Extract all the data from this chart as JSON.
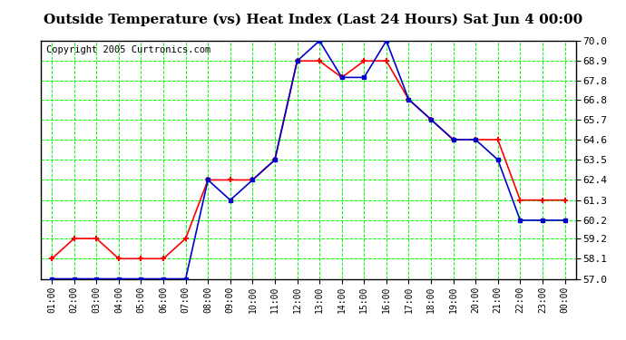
{
  "title": "Outside Temperature (vs) Heat Index (Last 24 Hours) Sat Jun 4 00:00",
  "copyright": "Copyright 2005 Curtronics.com",
  "x_labels": [
    "01:00",
    "02:00",
    "03:00",
    "04:00",
    "05:00",
    "06:00",
    "07:00",
    "08:00",
    "09:00",
    "10:00",
    "11:00",
    "12:00",
    "13:00",
    "14:00",
    "15:00",
    "16:00",
    "17:00",
    "18:00",
    "19:00",
    "20:00",
    "21:00",
    "22:00",
    "23:00",
    "00:00"
  ],
  "outside_temp": [
    58.1,
    59.2,
    59.2,
    58.1,
    58.1,
    58.1,
    59.2,
    62.4,
    62.4,
    62.4,
    63.5,
    68.9,
    68.9,
    68.0,
    68.9,
    68.9,
    66.8,
    65.7,
    64.6,
    64.6,
    64.6,
    61.3,
    61.3,
    61.3
  ],
  "heat_index": [
    57.0,
    57.0,
    57.0,
    57.0,
    57.0,
    57.0,
    57.0,
    62.4,
    61.3,
    62.4,
    63.5,
    68.9,
    70.0,
    68.0,
    68.0,
    70.0,
    66.8,
    65.7,
    64.6,
    64.6,
    63.5,
    60.2,
    60.2,
    60.2
  ],
  "temp_color": "#ff0000",
  "heat_color": "#0000cc",
  "bg_color": "#ffffff",
  "grid_color": "#00ff00",
  "ylim": [
    57.0,
    70.0
  ],
  "yticks": [
    57.0,
    58.1,
    59.2,
    60.2,
    61.3,
    62.4,
    63.5,
    64.6,
    65.7,
    66.8,
    67.8,
    68.9,
    70.0
  ],
  "title_fontsize": 11,
  "copyright_fontsize": 7.5
}
